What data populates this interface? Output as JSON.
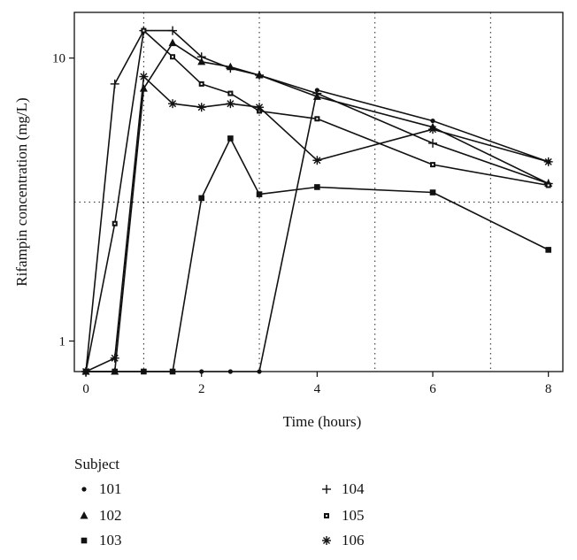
{
  "chart_data": {
    "type": "line",
    "title": "",
    "xlabel": "Time (hours)",
    "ylabel": "Rifampin concentration (mg/L)",
    "yscale": "log",
    "xlim": [
      -0.2,
      8.25
    ],
    "ylim": [
      0.78,
      14.5
    ],
    "x_ticks": [
      0,
      2,
      4,
      6,
      8
    ],
    "y_ticks": [
      1,
      10
    ],
    "grid": {
      "x_dotted": [
        1,
        3,
        5,
        7
      ],
      "y_dotted": [
        3.1
      ]
    },
    "legend_title": "Subject",
    "legend_position": "bottom",
    "series": [
      {
        "name": "101",
        "marker": "circle",
        "x": [
          0,
          0.5,
          1,
          1.5,
          2,
          2.5,
          3,
          4,
          6,
          8
        ],
        "y": [
          0.78,
          0.78,
          0.78,
          0.78,
          0.78,
          0.78,
          0.78,
          7.7,
          6.0,
          4.3
        ]
      },
      {
        "name": "102",
        "marker": "triangle",
        "x": [
          0,
          0.5,
          1,
          1.5,
          2,
          2.5,
          3,
          4,
          6,
          8
        ],
        "y": [
          0.78,
          0.78,
          7.8,
          11.3,
          9.7,
          9.3,
          8.7,
          7.3,
          5.7,
          3.6
        ]
      },
      {
        "name": "103",
        "marker": "square",
        "x": [
          0,
          0.5,
          1,
          1.5,
          2,
          2.5,
          3,
          4,
          6,
          8
        ],
        "y": [
          0.78,
          0.78,
          0.78,
          0.78,
          3.2,
          5.2,
          3.3,
          3.5,
          3.35,
          2.1
        ]
      },
      {
        "name": "104",
        "marker": "plus",
        "x": [
          0,
          0.5,
          1,
          1.5,
          2,
          2.5,
          3,
          4,
          6,
          8
        ],
        "y": [
          0.78,
          8.1,
          12.5,
          12.5,
          10.1,
          9.2,
          8.7,
          7.5,
          5.0,
          3.6
        ]
      },
      {
        "name": "105",
        "marker": "smallsquare",
        "x": [
          0,
          0.5,
          1,
          1.5,
          2,
          2.5,
          3,
          4,
          6,
          8
        ],
        "y": [
          0.78,
          2.6,
          12.5,
          10.1,
          8.1,
          7.5,
          6.5,
          6.1,
          4.2,
          3.55
        ]
      },
      {
        "name": "106",
        "marker": "star",
        "x": [
          0,
          0.5,
          1,
          1.5,
          2,
          2.5,
          3,
          4,
          6,
          8
        ],
        "y": [
          0.78,
          0.87,
          8.6,
          6.9,
          6.7,
          6.9,
          6.7,
          4.35,
          5.6,
          4.3
        ]
      }
    ]
  }
}
